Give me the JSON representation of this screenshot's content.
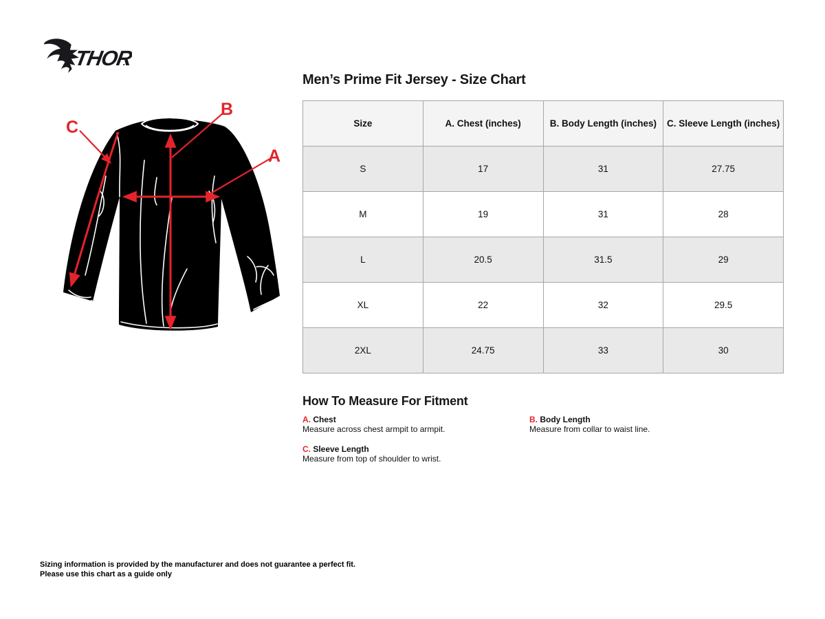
{
  "brand": {
    "name": "THOR",
    "period": "."
  },
  "page_title": "Men’s Prime Fit Jersey - Size Chart",
  "size_chart": {
    "columns": [
      "Size",
      "A. Chest (inches)",
      "B. Body Length (inches)",
      "C. Sleeve Length (inches)"
    ],
    "rows": [
      [
        "S",
        "17",
        "31",
        "27.75"
      ],
      [
        "M",
        "19",
        "31",
        "28"
      ],
      [
        "L",
        "20.5",
        "31.5",
        "29"
      ],
      [
        "XL",
        "22",
        "32",
        "29.5"
      ],
      [
        "2XL",
        "24.75",
        "33",
        "30"
      ]
    ]
  },
  "diagram": {
    "accent_color": "#e3242b",
    "labels": {
      "a": "A",
      "b": "B",
      "c": "C"
    }
  },
  "how_to_measure": {
    "heading": "How To Measure For Fitment",
    "items": [
      {
        "letter": "A.",
        "name": "Chest",
        "description": "Measure across chest armpit to armpit."
      },
      {
        "letter": "B.",
        "name": "Body Length",
        "description": "Measure from collar to waist line."
      },
      {
        "letter": "C.",
        "name": "Sleeve Length",
        "description": "Measure from top of shoulder to wrist."
      }
    ]
  },
  "disclaimer": {
    "line1": "Sizing information is provided by the manufacturer and does not guarantee a perfect fit.",
    "line2": "Please use this chart as a guide only"
  }
}
